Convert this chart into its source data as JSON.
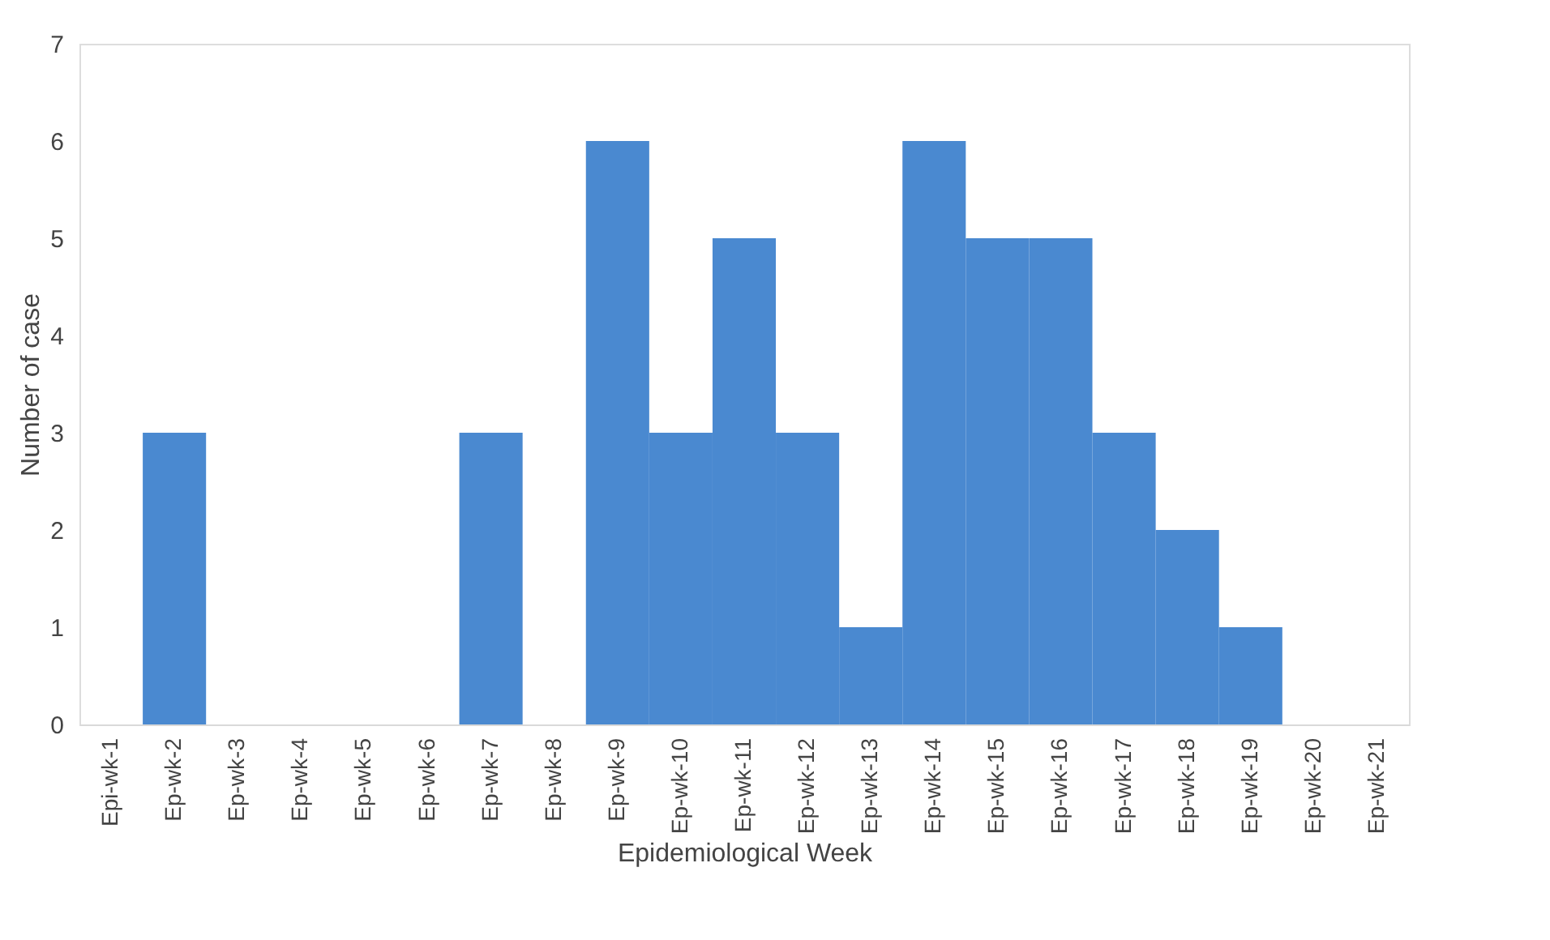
{
  "chart_data": {
    "type": "bar",
    "xlabel": "Epidemiological Week",
    "ylabel": "Number of case",
    "categories": [
      "Epi-wk-1",
      "Ep-wk-2",
      "Ep-wk-3",
      "Ep-wk-4",
      "Ep-wk-5",
      "Ep-wk-6",
      "Ep-wk-7",
      "Ep-wk-8",
      "Ep-wk-9",
      "Ep-wk-10",
      "Ep-wk-11",
      "Ep-wk-12",
      "Ep-wk-13",
      "Ep-wk-14",
      "Ep-wk-15",
      "Ep-wk-16",
      "Ep-wk-17",
      "Ep-wk-18",
      "Ep-wk-19",
      "Ep-wk-20",
      "Ep-wk-21"
    ],
    "values": [
      0,
      3,
      0,
      0,
      0,
      0,
      3,
      0,
      6,
      3,
      5,
      3,
      1,
      6,
      5,
      5,
      3,
      2,
      1,
      0,
      0
    ],
    "color": "#4a89d0",
    "ylim": [
      0,
      7
    ],
    "yticks": [
      0,
      1,
      2,
      3,
      4,
      5,
      6,
      7
    ],
    "grid": false
  }
}
